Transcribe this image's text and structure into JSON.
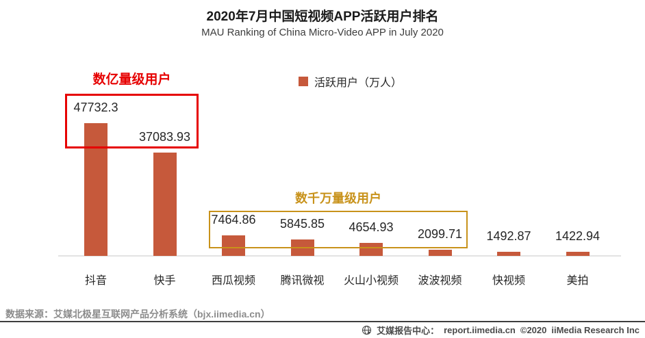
{
  "header": {
    "title": "2020年7月中国短视频APP活跃用户排名",
    "subtitle": "MAU Ranking of China Micro-Video APP in July 2020"
  },
  "legend": {
    "label": "活跃用户（万人）"
  },
  "chart_data": {
    "type": "bar",
    "title": "2020年7月中国短视频APP活跃用户排名",
    "subtitle": "MAU Ranking of China Micro-Video APP in July 2020",
    "series_name": "活跃用户（万人）",
    "categories": [
      "抖音",
      "快手",
      "西瓜视频",
      "腾讯微视",
      "火山小视频",
      "波波视频",
      "快视频",
      "美拍"
    ],
    "values": [
      47732.3,
      37083.93,
      7464.86,
      5845.85,
      4654.93,
      2099.71,
      1492.87,
      1422.94
    ],
    "value_labels": [
      "47732.3",
      "37083.93",
      "7464.86",
      "5845.85",
      "4654.93",
      "2099.71",
      "1492.87",
      "1422.94"
    ],
    "unit": "万人",
    "bar_color": "#c6593b",
    "ylim": [
      0,
      50000
    ],
    "grid": false,
    "legend_position": "top-center",
    "annotations": [
      {
        "label": "数亿量级用户",
        "color": "#e60000",
        "covers": [
          "抖音",
          "快手"
        ]
      },
      {
        "label": "数千万量级用户",
        "color": "#c8921a",
        "covers": [
          "西瓜视频",
          "腾讯微视",
          "火山小视频",
          "波波视频"
        ]
      }
    ]
  },
  "footer": {
    "source": "数据来源：艾媒北极星互联网产品分析系统（bjx.iimedia.cn）",
    "brand_label": "艾媒报告中心：",
    "brand_url": "report.iimedia.cn",
    "copyright": "©2020",
    "company": "iiMedia Research  Inc"
  }
}
